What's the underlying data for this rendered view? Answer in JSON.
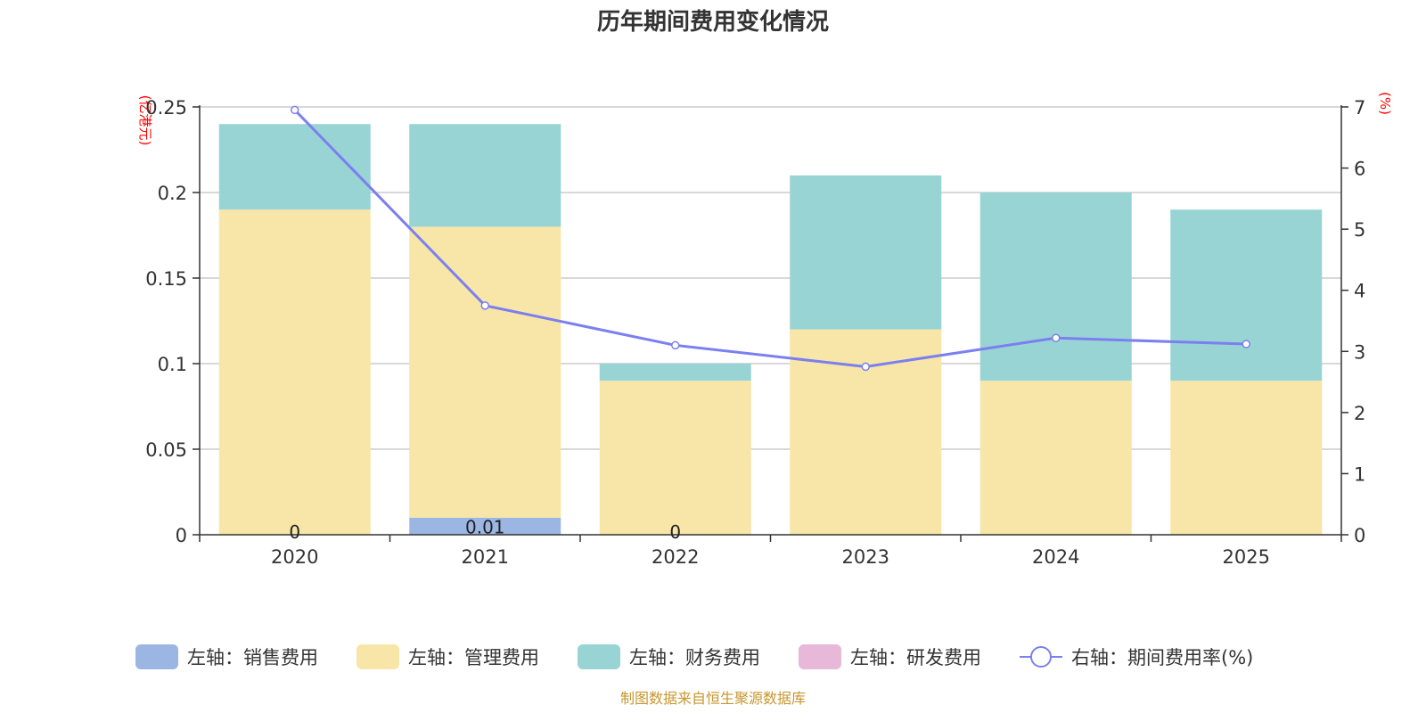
{
  "chart_data": {
    "type": "bar",
    "stacked": true,
    "title": "历年期间费用变化情况",
    "categories": [
      "2020",
      "2021",
      "2022",
      "2023",
      "2024",
      "2025"
    ],
    "left_axis": {
      "unit": "(亿港元)",
      "ylim": [
        0,
        0.25
      ],
      "ticks": [
        "0",
        "0.05",
        "0.1",
        "0.15",
        "0.2",
        "0.25"
      ]
    },
    "right_axis": {
      "unit": "(%)",
      "ylim": [
        0,
        7
      ],
      "ticks": [
        "0",
        "1",
        "2",
        "3",
        "4",
        "5",
        "6",
        "7"
      ]
    },
    "series": [
      {
        "name": "左轴：销售费用",
        "type": "bar",
        "color": "#9bb6e2",
        "values": [
          0,
          0.01,
          0,
          0,
          0,
          0
        ],
        "labels": [
          "0",
          "0.01",
          "0",
          "",
          "",
          ""
        ]
      },
      {
        "name": "左轴：管理费用",
        "type": "bar",
        "color": "#f7e6a8",
        "values": [
          0.19,
          0.17,
          0.09,
          0.12,
          0.09,
          0.09
        ]
      },
      {
        "name": "左轴：财务费用",
        "type": "bar",
        "color": "#98d4d4",
        "values": [
          0.05,
          0.06,
          0.01,
          0.09,
          0.11,
          0.1
        ]
      },
      {
        "name": "左轴：研发费用",
        "type": "bar",
        "color": "#e8b8d8",
        "values": [
          0,
          0,
          0,
          0,
          0,
          0
        ]
      },
      {
        "name": "右轴：期间费用率(%)",
        "type": "line",
        "color": "#7b7ff0",
        "values": [
          6.95,
          3.75,
          3.1,
          2.75,
          3.22,
          3.12
        ]
      }
    ],
    "source": "制图数据来自恒生聚源数据库"
  }
}
